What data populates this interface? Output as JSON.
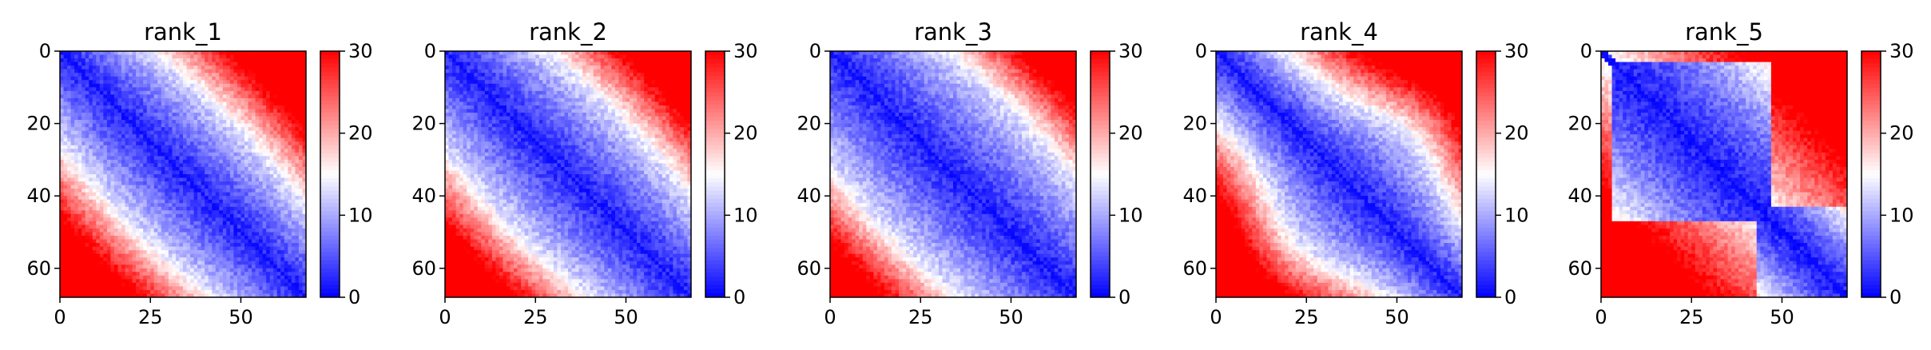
{
  "chart_data": [
    {
      "type": "heatmap",
      "title": "rank_1",
      "n": 68,
      "xticks": [
        0,
        25,
        50
      ],
      "yticks": [
        0,
        20,
        40,
        60
      ],
      "xlim": [
        0,
        68
      ],
      "ylim": [
        68,
        0
      ],
      "colorbar": {
        "min": 0,
        "max": 30,
        "ticks": [
          0,
          10,
          20,
          30
        ],
        "colormap": "bwr"
      },
      "profile": "uniform domain with plateau between 5 and 15, upper-right corner saturated"
    },
    {
      "type": "heatmap",
      "title": "rank_2",
      "n": 68,
      "xticks": [
        0,
        25,
        50
      ],
      "yticks": [
        0,
        20,
        40,
        60
      ],
      "xlim": [
        0,
        68
      ],
      "ylim": [
        68,
        0
      ],
      "colorbar": {
        "min": 0,
        "max": 30,
        "ticks": [
          0,
          10,
          20,
          30
        ],
        "colormap": "bwr"
      },
      "profile": "similar to rank_1, slightly wider domain"
    },
    {
      "type": "heatmap",
      "title": "rank_3",
      "n": 68,
      "xticks": [
        0,
        25,
        50
      ],
      "yticks": [
        0,
        20,
        40,
        60
      ],
      "xlim": [
        0,
        68
      ],
      "ylim": [
        68,
        0
      ],
      "colorbar": {
        "min": 0,
        "max": 30,
        "ticks": [
          0,
          10,
          20,
          30
        ],
        "colormap": "bwr"
      },
      "profile": "broadest blue band, largest domain near center"
    },
    {
      "type": "heatmap",
      "title": "rank_4",
      "n": 68,
      "xticks": [
        0,
        25,
        50
      ],
      "yticks": [
        0,
        20,
        40,
        60
      ],
      "xlim": [
        0,
        68
      ],
      "ylim": [
        68,
        0
      ],
      "colorbar": {
        "min": 0,
        "max": 30,
        "ticks": [
          0,
          10,
          20,
          30
        ],
        "colormap": "bwr"
      },
      "profile": "narrower band near top-left, widening at center"
    },
    {
      "type": "heatmap",
      "title": "rank_5",
      "n": 68,
      "xticks": [
        0,
        25,
        50
      ],
      "yticks": [
        0,
        20,
        40,
        60
      ],
      "xlim": [
        0,
        68
      ],
      "ylim": [
        68,
        0
      ],
      "colorbar": {
        "min": 0,
        "max": 30,
        "ticks": [
          0,
          10,
          20,
          30
        ],
        "colormap": "bwr"
      },
      "profile": "two domains: large blob upper-middle, smaller one lower-right"
    }
  ],
  "colors": {
    "low": "#0000ff",
    "mid": "#ffffff",
    "high": "#ff0000",
    "axis": "#000000"
  }
}
